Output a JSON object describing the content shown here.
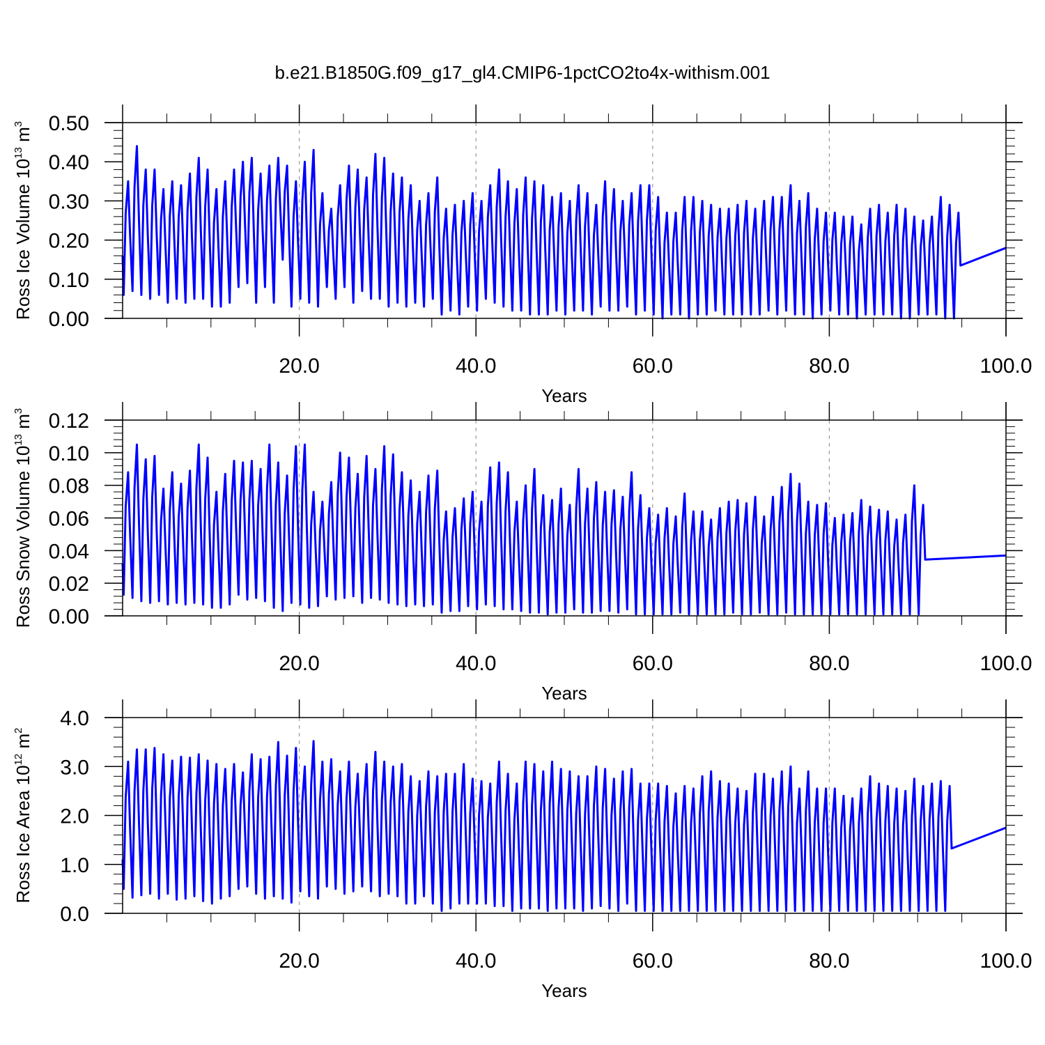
{
  "figure_title": "b.e21.B1850G.f09_g17_gl4.CMIP6-1pctCO2to4x-withism.001",
  "colors": {
    "series": "#0000ff",
    "axis": "#000000",
    "grid": "#999999"
  },
  "chart_data": [
    {
      "type": "line",
      "title": "",
      "xlabel": "Years",
      "ylabel_parts": [
        "Ross Ice Volume 10",
        "13",
        " m",
        "3"
      ],
      "xlim": [
        0.0,
        100.0
      ],
      "ylim": [
        0.0,
        0.5
      ],
      "yticks": [
        0.0,
        0.1,
        0.2,
        0.3,
        0.4,
        0.5
      ],
      "ytick_labels": [
        "0.00",
        "0.10",
        "0.20",
        "0.30",
        "0.40",
        "0.50"
      ],
      "xticks": [
        20.0,
        40.0,
        60.0,
        80.0,
        100.0
      ],
      "xtick_labels": [
        "20.0",
        "40.0",
        "60.0",
        "80.0",
        "100.0"
      ],
      "vgrid": [
        20,
        40,
        60,
        80
      ],
      "series": [
        {
          "start_year": 0.0,
          "start_value": 0.16,
          "end_value": 0.18,
          "year_max": [
            0.35,
            0.44,
            0.38,
            0.38,
            0.33,
            0.35,
            0.34,
            0.37,
            0.41,
            0.38,
            0.33,
            0.35,
            0.38,
            0.4,
            0.41,
            0.37,
            0.39,
            0.41,
            0.39,
            0.35,
            0.4,
            0.43,
            0.32,
            0.28,
            0.34,
            0.39,
            0.38,
            0.36,
            0.42,
            0.41,
            0.37,
            0.36,
            0.34,
            0.3,
            0.32,
            0.36,
            0.28,
            0.29,
            0.3,
            0.32,
            0.3,
            0.34,
            0.38,
            0.35,
            0.33,
            0.36,
            0.35,
            0.34,
            0.31,
            0.32,
            0.3,
            0.34,
            0.32,
            0.29,
            0.35,
            0.33,
            0.3,
            0.32,
            0.34,
            0.34,
            0.31,
            0.27,
            0.27,
            0.31,
            0.31,
            0.3,
            0.29,
            0.28,
            0.28,
            0.29,
            0.3,
            0.28,
            0.3,
            0.31,
            0.31,
            0.34,
            0.3,
            0.32,
            0.28,
            0.27,
            0.27,
            0.26,
            0.26,
            0.24,
            0.28,
            0.29,
            0.27,
            0.29,
            0.28,
            0.26,
            0.25,
            0.26,
            0.31,
            0.29,
            0.27
          ],
          "year_min": [
            0.06,
            0.07,
            0.06,
            0.05,
            0.06,
            0.04,
            0.05,
            0.04,
            0.05,
            0.05,
            0.03,
            0.03,
            0.04,
            0.08,
            0.09,
            0.04,
            0.08,
            0.04,
            0.15,
            0.03,
            0.05,
            0.04,
            0.03,
            0.08,
            0.05,
            0.08,
            0.04,
            0.07,
            0.05,
            0.05,
            0.03,
            0.04,
            0.03,
            0.04,
            0.03,
            0.05,
            0.01,
            0.02,
            0.01,
            0.03,
            0.02,
            0.05,
            0.04,
            0.03,
            0.02,
            0.02,
            0.01,
            0.01,
            0.01,
            0.02,
            0.01,
            0.02,
            0.02,
            0.01,
            0.03,
            0.02,
            0.02,
            0.03,
            0.01,
            0.02,
            0.01,
            0.0,
            0.01,
            0.01,
            0.0,
            0.01,
            0.01,
            0.02,
            0.01,
            0.01,
            0.01,
            0.01,
            0.01,
            0.02,
            0.01,
            0.02,
            0.01,
            0.01,
            0.0,
            0.01,
            0.02,
            0.01,
            0.01,
            0.0,
            0.01,
            0.01,
            0.01,
            0.01,
            0.0,
            0.0,
            0.01,
            0.01,
            0.01,
            0.0,
            0.0
          ]
        }
      ]
    },
    {
      "type": "line",
      "title": "",
      "xlabel": "Years",
      "ylabel_parts": [
        "Ross Snow Volume 10",
        "13",
        " m",
        "3"
      ],
      "xlim": [
        0.0,
        100.0
      ],
      "ylim": [
        0.0,
        0.12
      ],
      "yticks": [
        0.0,
        0.02,
        0.04,
        0.06,
        0.08,
        0.1,
        0.12
      ],
      "ytick_labels": [
        "0.00",
        "0.02",
        "0.04",
        "0.06",
        "0.08",
        "0.10",
        "0.12"
      ],
      "xticks": [
        20.0,
        40.0,
        60.0,
        80.0,
        100.0
      ],
      "xtick_labels": [
        "20.0",
        "40.0",
        "60.0",
        "80.0",
        "100.0"
      ],
      "vgrid": [
        20,
        40,
        60,
        80
      ],
      "series": [
        {
          "start_year": 0.0,
          "start_value": 0.032,
          "end_value": 0.037,
          "year_max": [
            0.088,
            0.105,
            0.096,
            0.098,
            0.078,
            0.088,
            0.081,
            0.089,
            0.105,
            0.097,
            0.076,
            0.087,
            0.095,
            0.094,
            0.095,
            0.09,
            0.105,
            0.094,
            0.086,
            0.104,
            0.105,
            0.076,
            0.07,
            0.082,
            0.1,
            0.097,
            0.087,
            0.098,
            0.09,
            0.104,
            0.099,
            0.088,
            0.083,
            0.076,
            0.086,
            0.089,
            0.064,
            0.066,
            0.072,
            0.076,
            0.07,
            0.091,
            0.094,
            0.088,
            0.07,
            0.08,
            0.09,
            0.074,
            0.071,
            0.078,
            0.068,
            0.09,
            0.078,
            0.082,
            0.076,
            0.077,
            0.073,
            0.088,
            0.074,
            0.066,
            0.062,
            0.066,
            0.061,
            0.075,
            0.064,
            0.064,
            0.059,
            0.066,
            0.07,
            0.071,
            0.069,
            0.073,
            0.061,
            0.073,
            0.079,
            0.087,
            0.081,
            0.07,
            0.068,
            0.069,
            0.06,
            0.062,
            0.063,
            0.071,
            0.067,
            0.065,
            0.064,
            0.059,
            0.062,
            0.08,
            0.068
          ],
          "year_min": [
            0.013,
            0.011,
            0.009,
            0.008,
            0.009,
            0.007,
            0.008,
            0.007,
            0.008,
            0.007,
            0.005,
            0.005,
            0.007,
            0.013,
            0.01,
            0.011,
            0.009,
            0.005,
            0.003,
            0.008,
            0.007,
            0.005,
            0.006,
            0.012,
            0.01,
            0.011,
            0.012,
            0.008,
            0.011,
            0.01,
            0.008,
            0.007,
            0.006,
            0.007,
            0.006,
            0.007,
            0.002,
            0.003,
            0.003,
            0.006,
            0.004,
            0.007,
            0.006,
            0.004,
            0.004,
            0.003,
            0.002,
            0.002,
            0.001,
            0.002,
            0.002,
            0.004,
            0.002,
            0.002,
            0.003,
            0.003,
            0.002,
            0.004,
            0.001,
            0.001,
            0.001,
            0.001,
            0.001,
            0.002,
            0.001,
            0.001,
            0.001,
            0.001,
            0.001,
            0.002,
            0.001,
            0.001,
            0.002,
            0.001,
            0.001,
            0.002,
            0.001,
            0.001,
            0.001,
            0.001,
            0.001,
            0.001,
            0.001,
            0.001,
            0.001,
            0.001,
            0.001,
            0.001,
            0.001,
            0.001,
            0.001
          ]
        }
      ]
    },
    {
      "type": "line",
      "title": "",
      "xlabel": "Years",
      "ylabel_parts": [
        "Ross Ice Area 10",
        "12",
        " m",
        "2"
      ],
      "xlim": [
        0.0,
        100.0
      ],
      "ylim": [
        0.0,
        4.0
      ],
      "yticks": [
        0.0,
        1.0,
        2.0,
        3.0,
        4.0
      ],
      "ytick_labels": [
        "0.0",
        "1.0",
        "2.0",
        "3.0",
        "4.0"
      ],
      "xticks": [
        20.0,
        40.0,
        60.0,
        80.0,
        100.0
      ],
      "xtick_labels": [
        "20.0",
        "40.0",
        "60.0",
        "80.0",
        "100.0"
      ],
      "vgrid": [
        20,
        40,
        60,
        80
      ],
      "series": [
        {
          "start_year": 0.0,
          "start_value": 1.1,
          "end_value": 1.75,
          "year_max": [
            3.1,
            3.35,
            3.35,
            3.38,
            3.25,
            3.12,
            3.2,
            3.18,
            3.25,
            3.12,
            3.05,
            2.95,
            3.05,
            2.88,
            3.25,
            3.15,
            3.2,
            3.5,
            3.22,
            3.38,
            3.0,
            3.52,
            3.1,
            3.15,
            2.9,
            3.1,
            2.85,
            3.05,
            3.3,
            3.1,
            3.0,
            3.05,
            2.8,
            2.7,
            2.9,
            2.8,
            2.85,
            2.85,
            3.05,
            2.75,
            2.7,
            2.65,
            3.1,
            2.85,
            2.65,
            3.1,
            3.05,
            2.9,
            3.1,
            2.95,
            2.9,
            2.8,
            2.8,
            3.0,
            2.95,
            2.75,
            2.9,
            2.95,
            2.65,
            2.65,
            2.65,
            2.6,
            2.45,
            2.6,
            2.55,
            2.8,
            2.9,
            2.7,
            2.65,
            2.55,
            2.5,
            2.85,
            2.85,
            2.75,
            2.9,
            3.0,
            2.55,
            2.9,
            2.55,
            2.55,
            2.55,
            2.4,
            2.35,
            2.55,
            2.8,
            2.65,
            2.6,
            2.55,
            2.5,
            2.75,
            2.6,
            2.65,
            2.7,
            2.6
          ],
          "year_min": [
            0.5,
            0.32,
            0.37,
            0.4,
            0.3,
            0.4,
            0.28,
            0.3,
            0.35,
            0.25,
            0.2,
            0.3,
            0.35,
            0.5,
            0.55,
            0.4,
            0.3,
            0.35,
            0.3,
            0.22,
            0.45,
            0.35,
            0.3,
            0.55,
            0.5,
            0.4,
            0.45,
            0.55,
            0.45,
            0.35,
            0.4,
            0.35,
            0.2,
            0.2,
            0.35,
            0.2,
            0.05,
            0.1,
            0.2,
            0.2,
            0.2,
            0.2,
            0.15,
            0.15,
            0.05,
            0.1,
            0.1,
            0.1,
            0.05,
            0.1,
            0.1,
            0.1,
            0.05,
            0.1,
            0.15,
            0.1,
            0.05,
            0.2,
            0.05,
            0.05,
            0.05,
            0.05,
            0.05,
            0.05,
            0.05,
            0.05,
            0.05,
            0.05,
            0.05,
            0.05,
            0.05,
            0.05,
            0.05,
            0.05,
            0.05,
            0.05,
            0.05,
            0.05,
            0.05,
            0.05,
            0.05,
            0.05,
            0.05,
            0.05,
            0.05,
            0.05,
            0.05,
            0.05,
            0.05,
            0.05,
            0.05,
            0.05,
            0.05,
            0.05
          ]
        }
      ]
    }
  ]
}
